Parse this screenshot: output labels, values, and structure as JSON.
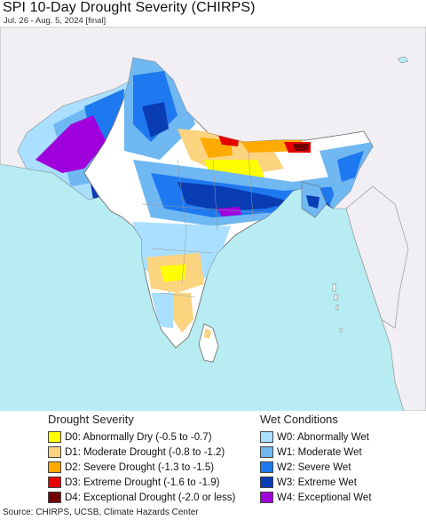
{
  "title": "SPI 10-Day Drought Severity (CHIRPS)",
  "subtitle": "Jul. 26 - Aug. 5, 2024 [final]",
  "map": {
    "region": "South Asia",
    "colors": {
      "sea": "#b6ecf2",
      "land_outside": "#f1eff4",
      "land_normal": "#ffffff",
      "border": "#6a6a6a",
      "state_border": "#999999"
    }
  },
  "legend": {
    "drought": {
      "heading": "Drought Severity",
      "items": [
        {
          "label": "D0: Abnormally Dry (-0.5 to -0.7)",
          "color": "#ffff00"
        },
        {
          "label": "D1: Moderate Drought (-0.8 to -1.2)",
          "color": "#fcd37f"
        },
        {
          "label": "D2: Severe Drought (-1.3 to -1.5)",
          "color": "#ffaa00"
        },
        {
          "label": "D3: Extreme Drought (-1.6 to -1.9)",
          "color": "#e60000"
        },
        {
          "label": "D4: Exceptional Drought (-2.0 or less)",
          "color": "#730000"
        }
      ]
    },
    "wet": {
      "heading": "Wet Conditions",
      "items": [
        {
          "label": "W0: Abnormally Wet",
          "color": "#aadfff"
        },
        {
          "label": "W1: Moderate Wet",
          "color": "#6fb8f2"
        },
        {
          "label": "W2: Severe Wet",
          "color": "#1e78f0"
        },
        {
          "label": "W3: Extreme Wet",
          "color": "#0a3cb4"
        },
        {
          "label": "W4: Exceptional Wet",
          "color": "#a000dc"
        }
      ]
    }
  },
  "source": "Source: CHIRPS, UCSB, Climate Hazards Center"
}
